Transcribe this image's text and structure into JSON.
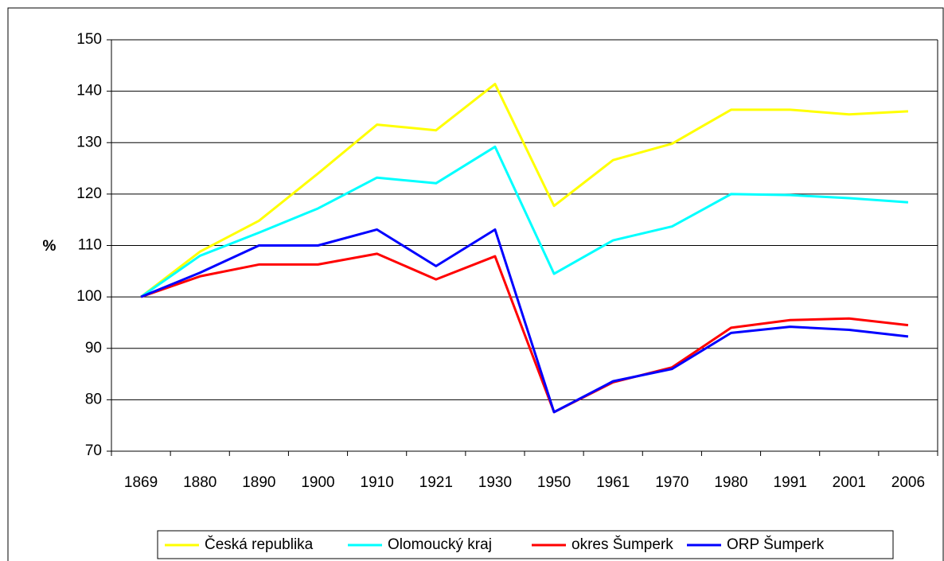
{
  "chart_data": {
    "type": "line",
    "y_label": "%",
    "categories": [
      "1869",
      "1880",
      "1890",
      "1900",
      "1910",
      "1921",
      "1930",
      "1950",
      "1961",
      "1970",
      "1980",
      "1991",
      "2001",
      "2006"
    ],
    "series": [
      {
        "name": "Česká republika",
        "color": "#ffff00",
        "values": [
          100,
          108.8,
          114.8,
          124,
          133.5,
          132.4,
          141.4,
          117.7,
          126.6,
          129.8,
          136.4,
          136.4,
          135.5,
          136.1
        ]
      },
      {
        "name": "Olomoucký kraj",
        "color": "#00ffff",
        "values": [
          100,
          108,
          112.5,
          117.2,
          123.2,
          122.1,
          129.2,
          104.5,
          111,
          113.7,
          120,
          119.8,
          119.2,
          118.4
        ]
      },
      {
        "name": "okres Šumperk",
        "color": "#ff0000",
        "values": [
          100,
          104,
          106.3,
          106.3,
          108.4,
          103.4,
          107.9,
          77.6,
          83.4,
          86.3,
          94,
          95.5,
          95.8,
          94.5
        ]
      },
      {
        "name": "ORP Šumperk",
        "color": "#0000ff",
        "values": [
          100,
          104.7,
          110,
          110,
          113.1,
          106,
          113.1,
          77.6,
          83.6,
          86,
          93,
          94.2,
          93.6,
          92.3
        ]
      }
    ],
    "ylim": [
      70,
      150
    ],
    "yticks": [
      70,
      80,
      90,
      100,
      110,
      120,
      130,
      140,
      150
    ],
    "grid": true,
    "legend": "bottom"
  }
}
